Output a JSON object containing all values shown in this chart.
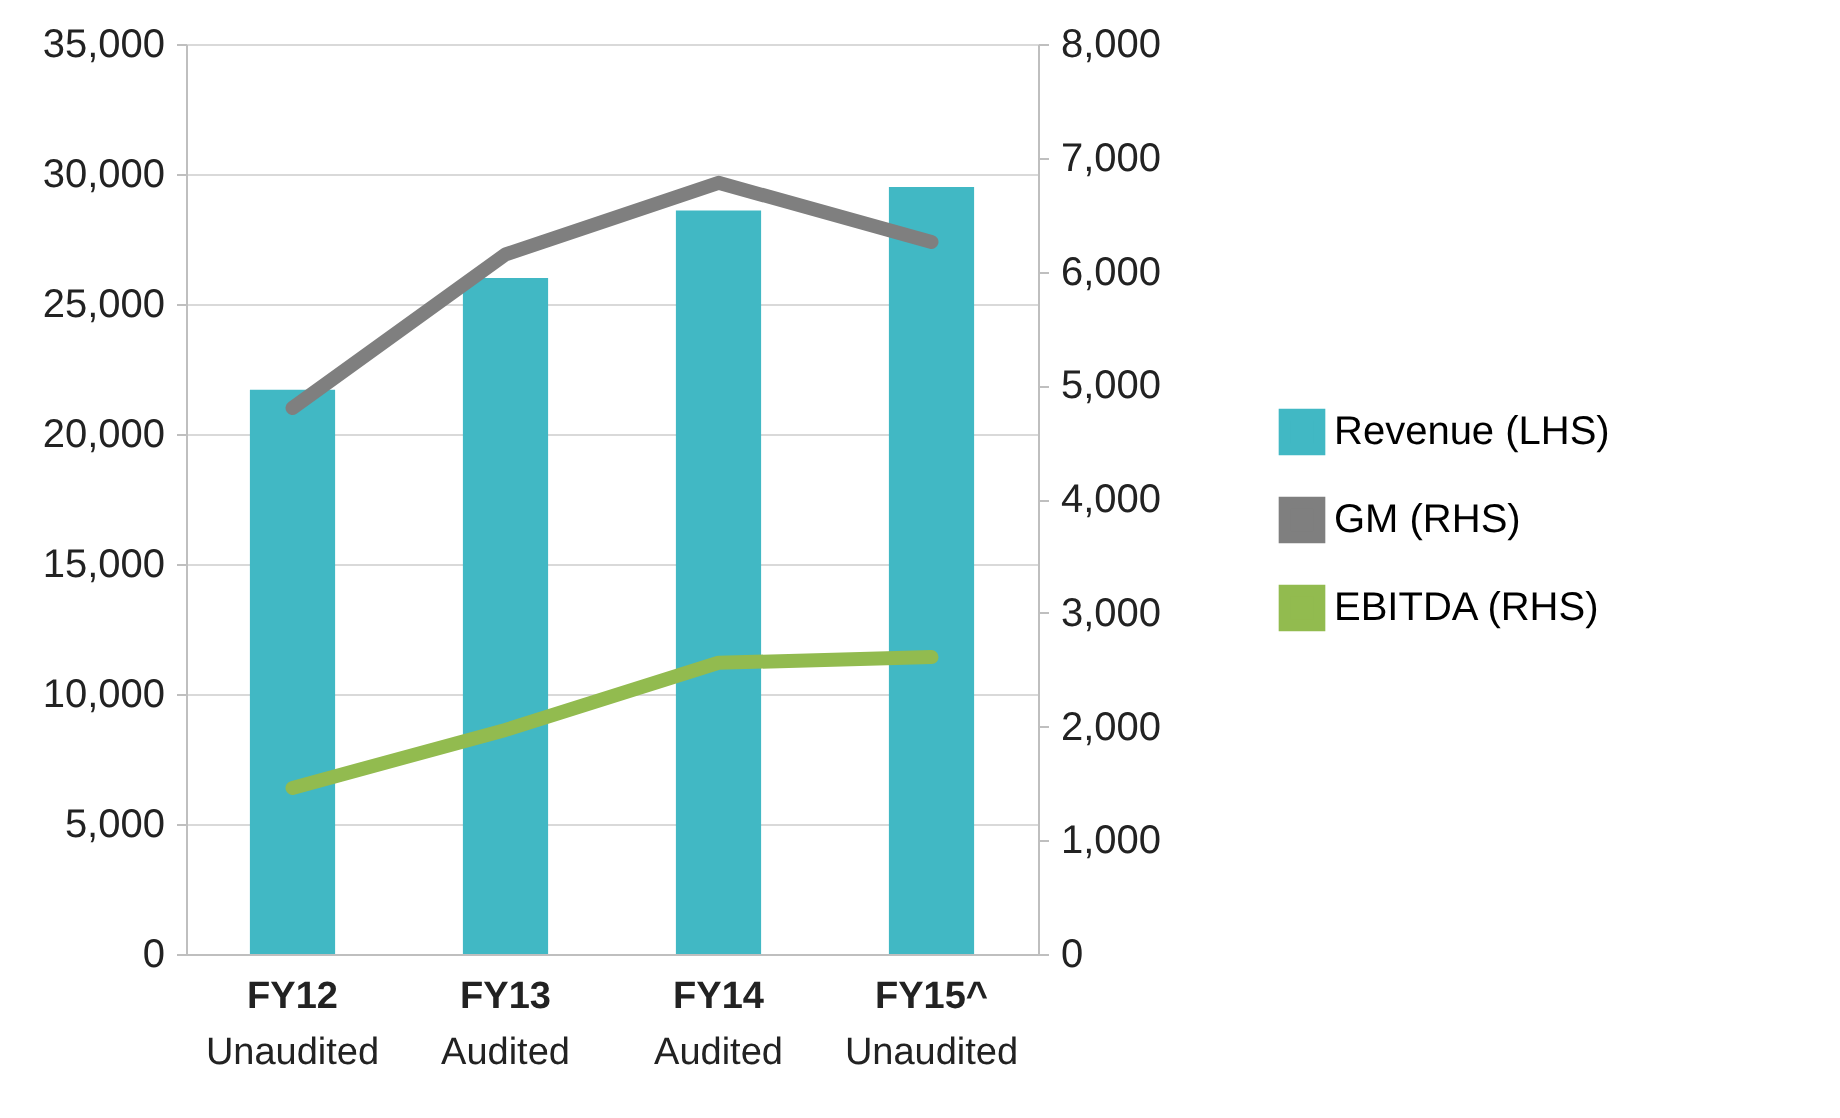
{
  "chart_data": {
    "type": "bar",
    "categories": [
      "FY12\nUnaudited",
      "FY13\nAudited",
      "FY14\nAudited",
      "FY15^\nUnaudited"
    ],
    "series": [
      {
        "name": "Revenue (LHS)",
        "color": "#41b8c4",
        "values": [
          21700,
          26000,
          28600,
          29500
        ]
      },
      {
        "name": "GM (RHS)",
        "type": "line",
        "axis": "y2",
        "color": "#7f7f7f",
        "values": [
          4800,
          6150,
          6780,
          6260
        ]
      },
      {
        "name": "EBITDA (RHS)",
        "type": "line",
        "axis": "y2",
        "color": "#92bb4f",
        "values": [
          1460,
          1970,
          2560,
          2610
        ]
      }
    ],
    "ylim": [
      0,
      35000
    ],
    "yticks": [
      {
        "value": 0,
        "label": "0"
      },
      {
        "value": 5000,
        "label": "5,000"
      },
      {
        "value": 10000,
        "label": "10,000"
      },
      {
        "value": 15000,
        "label": "15,000"
      },
      {
        "value": 20000,
        "label": "20,000"
      },
      {
        "value": 25000,
        "label": "25,000"
      },
      {
        "value": 30000,
        "label": "30,000"
      },
      {
        "value": 35000,
        "label": "35,000"
      }
    ],
    "y2lim": [
      0,
      8000
    ],
    "y2ticks": [
      {
        "value": 0,
        "label": "0"
      },
      {
        "value": 1000,
        "label": "1,000"
      },
      {
        "value": 2000,
        "label": "2,000"
      },
      {
        "value": 3000,
        "label": "3,000"
      },
      {
        "value": 4000,
        "label": "4,000"
      },
      {
        "value": 5000,
        "label": "5,000"
      },
      {
        "value": 6000,
        "label": "6,000"
      },
      {
        "value": 7000,
        "label": "7,000"
      },
      {
        "value": 8000,
        "label": "8,000"
      }
    ],
    "grid": "y",
    "legend": "right",
    "line_style": "solid",
    "marker": "none"
  }
}
